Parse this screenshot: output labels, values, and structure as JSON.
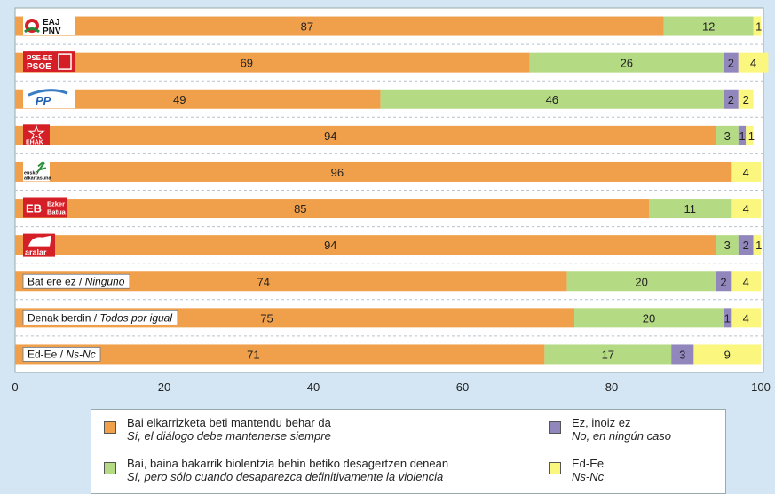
{
  "chart_data": {
    "type": "bar",
    "orientation": "horizontal",
    "stacked": true,
    "xlim": [
      0,
      100
    ],
    "x_ticks": [
      "0",
      "20",
      "40",
      "60",
      "80",
      "100"
    ],
    "grid": "dashed-horizontal",
    "categories": [
      "EAJ-PNV",
      "PSE-EE PSOE",
      "PP",
      "EHAK",
      "eusko alkartasuna",
      "Ezker Batua",
      "aralar",
      "Bat ere ez / Ninguno",
      "Denak berdin / Todos por igual",
      "Ed-Ee / Ns-Nc"
    ],
    "row_labels": [
      {
        "type": "logo",
        "logo": "eaj-pnv-logo",
        "text": "EAJ PNV"
      },
      {
        "type": "logo",
        "logo": "pse-ee-psoe-logo",
        "text": "PSE-EE PSOE"
      },
      {
        "type": "logo",
        "logo": "pp-logo",
        "text": "PP"
      },
      {
        "type": "logo",
        "logo": "ehak-logo",
        "text": "EHAK"
      },
      {
        "type": "logo",
        "logo": "eusko-alkartasuna-logo",
        "text": "eusko alkartasuna"
      },
      {
        "type": "logo",
        "logo": "ezker-batua-logo",
        "text": "Ezker Batua"
      },
      {
        "type": "logo",
        "logo": "aralar-logo",
        "text": "aralar"
      },
      {
        "type": "text",
        "eu": "Bat ere ez / ",
        "es": "Ninguno"
      },
      {
        "type": "text",
        "eu": "Denak berdin / ",
        "es": "Todos por igual"
      },
      {
        "type": "text",
        "eu": "Ed-Ee / ",
        "es": "Ns-Nc"
      }
    ],
    "series": [
      {
        "name": "Bai elkarrizketa beti mantendu behar da",
        "name_es": "Sí, el diálogo debe mantenerse siempre",
        "color": "#f0a04b",
        "values": [
          87,
          69,
          49,
          94,
          96,
          85,
          94,
          74,
          75,
          71
        ]
      },
      {
        "name": "Bai, baina bakarrik biolentzia behin betiko desagertzen denean",
        "name_es": "Sí, pero sólo cuando desaparezca definitivamente la violencia",
        "color": "#b5da84",
        "values": [
          12,
          26,
          46,
          3,
          0,
          11,
          3,
          20,
          20,
          17
        ]
      },
      {
        "name": "Ez, inoiz ez",
        "name_es": "No, en ningún caso",
        "color": "#9187bd",
        "values": [
          0,
          2,
          2,
          1,
          0,
          0,
          2,
          2,
          1,
          3
        ]
      },
      {
        "name": "Ed-Ee",
        "name_es": "Ns-Nc",
        "color": "#fbf77e",
        "values": [
          1,
          4,
          2,
          1,
          4,
          4,
          1,
          4,
          4,
          9
        ]
      }
    ],
    "legend_position": "bottom"
  }
}
